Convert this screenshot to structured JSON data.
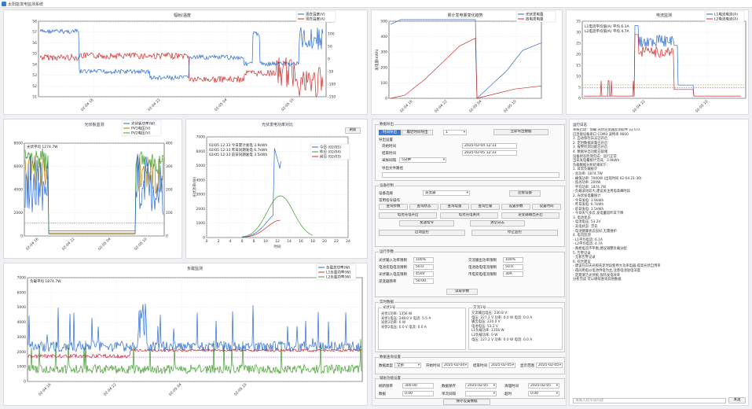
{
  "window": {
    "title": "太阳能发电监测系统"
  },
  "charts": {
    "irr": {
      "title": "辐射/温度",
      "legend": [
        "现在温度(V)",
        "现在温度(A)"
      ],
      "yl_ticks": [
        "51",
        "52",
        "53",
        "54",
        "55",
        "56",
        "57",
        "58"
      ],
      "yr_ticks": [
        "-150",
        "-100",
        "-50",
        "0",
        "50",
        "100",
        "150"
      ],
      "x_ticks": [
        "02-04 16",
        "02-04 22",
        "02-05 04",
        "02-05 10"
      ],
      "colors": [
        "#2a6ad1",
        "#cf2a2a"
      ]
    },
    "gen": {
      "title": "累计发电量变化趋势",
      "legend": [
        "光伏发电量",
        "放电发电量"
      ],
      "y_ticks": [
        "0",
        "100",
        "200",
        "300",
        "400",
        "500"
      ],
      "ylabel": "发电量(kWh)",
      "x_ticks": [
        "02-04 16",
        "02-04 22",
        "02-05 04",
        "02-05 10"
      ],
      "colors": [
        "#2a6ad1",
        "#cf2a2a"
      ]
    },
    "cur": {
      "title": "电流监测",
      "legend": [
        "L1电流电流(A)",
        "L2电流电流(A)"
      ],
      "annot": [
        "L1电流平均值(A) 平均 6.1A",
        "L2电流平均值(A) 平均 4.7A"
      ],
      "y_ticks": [
        "0",
        "5",
        "10",
        "15",
        "20",
        "25",
        "30",
        "35"
      ],
      "x_ticks": [
        "02-04 22",
        "02-05 10"
      ],
      "colors": [
        "#2a6ad1",
        "#cf2a2a"
      ]
    },
    "pv": {
      "title": "光伏板监测",
      "legend": [
        "光伏板功率(W)",
        "PV1电压(V)",
        "PV2电压(V)"
      ],
      "annot": "光伏平均 1274.7W",
      "yl_ticks": [
        "0",
        "2000",
        "4000",
        "6000",
        "8000"
      ],
      "yr_ticks": [
        "0",
        "100",
        "200",
        "300",
        "400"
      ],
      "x_ticks": [
        "02-04 16",
        "02-04 22",
        "02-05 04",
        "02-05 10"
      ],
      "colors": [
        "#2a6ad1",
        "#b07a00",
        "#3f9b2c"
      ]
    },
    "daily": {
      "title": "光伏发电功率对比",
      "legend": [
        "今日 (02/05)",
        "昨日 (02/04)",
        "前日 (02/03)"
      ],
      "info": [
        "02/05 12:33 今日累计发电 3.9kWh",
        "02/05 12:33 昨日同期发电 6.7kWh",
        "02/05 12:33 前日同期发电 3.5kWh"
      ],
      "y_ticks": [
        "0",
        "1000",
        "2000",
        "3000",
        "4000",
        "5000",
        "6000",
        "7000"
      ],
      "ylabel": "光伏功率(W)",
      "x_ticks": [
        "0",
        "2",
        "4",
        "6",
        "8",
        "10",
        "12",
        "14",
        "16",
        "18",
        "20",
        "22",
        "24"
      ],
      "xlabel": "时间",
      "colors": [
        "#2a6ad1",
        "#3f9b2c",
        "#cf2a2a"
      ],
      "refresh": "刷新"
    },
    "load": {
      "title": "负载监测",
      "legend": [
        "负载总功率(W)",
        "L1负载功率(W)",
        "L2负载功率(W)"
      ],
      "annot": "负载平均 1874.7W",
      "y_ticks": [
        "0",
        "1000",
        "2000",
        "3000",
        "4000",
        "5000",
        "6000",
        "7000"
      ],
      "x_ticks": [
        "02-04 16",
        "02-04 22",
        "02-05 04",
        "02-05 10"
      ],
      "colors": [
        "#2a6ad1",
        "#cf2a2a",
        "#3f9b2c"
      ]
    }
  },
  "settings": {
    "group1": "数据导出",
    "tabs": [
      "时间导出",
      "最近时间导出"
    ],
    "range_value": "1",
    "export_btn": "立即导出数据",
    "sub1": "导出设置",
    "start_label": "开始时间",
    "start_value": "2025-02-04 12:33",
    "end_label": "结束时间",
    "end_value": "2025-02-05 12:33",
    "sampling_label": "采样间隔",
    "sampling_value": "5分钟",
    "path_label": "导出文件路径",
    "group2": "设备控制",
    "device_label": "设备选择",
    "device_value": "逆变器",
    "connect_btn": "连接设备",
    "cmd_label": "常用指令操作",
    "cmd_btns": [
      "查询参数",
      "查询状态",
      "查询电量",
      "查询告警",
      "设置参数",
      "设置时间"
    ],
    "row_btns1": [
      "电池充电开启",
      "电池充电关闭",
      "逆变器输出开启"
    ],
    "row_btns2": [
      "发送指令",
      "清空日志"
    ],
    "row_btns3": [
      "启动监控",
      "停止监控"
    ],
    "group3": "运行参数",
    "params": [
      [
        "光伏输入功率限制",
        "100%",
        "交流输出功率限制",
        "100%"
      ],
      [
        "电池充电电流限制",
        "50.0",
        "电池放电电流限制",
        "50.0"
      ],
      [
        "光伏输入电压限制",
        "450V",
        "市电充电电流限制",
        "30A"
      ],
      [
        "逆变器频率",
        "50.00",
        "",
        ""
      ]
    ],
    "params_btn": "读取参数",
    "group4": "实时数据",
    "rt_left_title": "光伏1号",
    "rt_left": [
      "光伏1功率: 1356 W",
      "光伏1电压: 248.0 V 电流: 5.5 A",
      "光伏2功率: 0 W",
      "光伏2电压: 0.0 V 电流: 0.0 A"
    ],
    "rt_right_title": "交流1号",
    "rt_right": [
      "交流输出电压: 230.8 V",
      "电压: 227.2 V 功率: 0.0 W 电流: 0.0 A",
      "输出电压: 220.0 V",
      "电池电压: 53.2 V",
      "L1负载功率: 1356 W",
      "L2负载功率: 0 W",
      "电压: 227.2 V 功率: 0.0 W 电流: 0.0 A"
    ],
    "group5": "数据查询设置",
    "q_labels": [
      "数据类型",
      "开始时间",
      "结束时间",
      "显示范围"
    ],
    "q_values": [
      "全部",
      "2025-02-04",
      "2025-02-05",
      "2025-02-05"
    ],
    "group6": "辅助功能设置",
    "aux": [
      [
        "刷新频率",
        "300.00",
        "数据保存",
        "2025-02-05",
        "清理时间",
        "2025-02-05"
      ],
      [
        "数据",
        "0.00",
        "单次间隔",
        "",
        "超时",
        "0.00"
      ]
    ],
    "bottom_btn": "保存设置数据"
  },
  "log": {
    "title": "运行日志",
    "lines": [
      "系统启动：加载 光伏逆变器监测软件 v2.0.0",
      "已连接设备串口 COM3 波特率 9600",
      "1. 自动保存日志已开启",
      "2. 定时数据采集已开启",
      "3. 报警检测功能已开启",
      "4. 数据导出功能已就绪",
      "",
      "设备状态检测完成：运行正常",
      "",
      "当日发电量统计完成：3.9kWh",
      "",
      "负载数据分析结果如下：",
      "1. 日常负载统计",
      "  - 总功率: 1874.7W",
      "  - 峰值功率: 7000W (出现时间 02-04 21:30)",
      "  - 低谷功率: 200W",
      "  - 平均功率: 1874.7W",
      "  - 负载波动较大,建议关注用电高峰时段",
      "",
      "2. 光伏发电量统计",
      "  - 今日发电: 3.9kWh",
      "  - 昨日发电: 6.7kWh",
      "  - 前日发电: 3.5kWh",
      "  - 今日天气多云,发电量较昨日下降",
      "",
      "3. 电池状态",
      "  - 电池电压: 53.2V",
      "  - 充电状态: 浮充",
      "  - 电池健康状态良好,无需维护",
      "",
      "4. 电流监测",
      "  - L1平均电流: 6.1A",
      "  - L2平均电流: 4.7A",
      "  - 两相电流不平衡,建议调整负载分配",
      "",
      "5. 告警记录",
      "  - 无新告警记录",
      "",
      "6. 综合建议",
      "  - 建议在白天光照充足时段使用大功率电器,提高光伏自用率",
      "  - 夜间用电以电池供电为主,注意电池放电深度",
      "  - 定期清洁光伏板,保持发电效率",
      "",
      "分析完成 可以继续查询其他数据"
    ],
    "input_placeholder": "请输入指令或问题",
    "send_btn": "发送"
  }
}
